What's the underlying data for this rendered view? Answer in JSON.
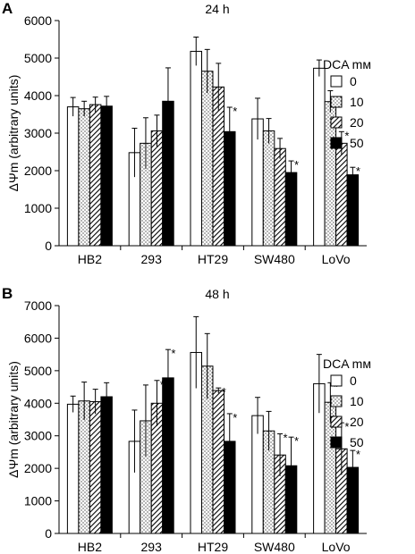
{
  "chart_data": [
    {
      "type": "bar",
      "panel_label": "A",
      "title": "24 h",
      "ylabel": "ΔΨm (arbitrary units)",
      "xlabel": "",
      "categories": [
        "HB2",
        "293",
        "HT29",
        "SW480",
        "LoVo"
      ],
      "ylim": [
        0,
        6000
      ],
      "yticks": [
        0,
        1000,
        2000,
        3000,
        4000,
        5000,
        6000
      ],
      "legend_title": "DCA mᴍ",
      "legend_position": "right",
      "series": [
        {
          "name": "0",
          "pattern": "open",
          "values": [
            3700,
            2480,
            5180,
            3380,
            4730
          ],
          "errors": [
            250,
            650,
            380,
            550,
            220
          ],
          "significant": [
            false,
            false,
            false,
            false,
            false
          ]
        },
        {
          "name": "10",
          "pattern": "dotted",
          "values": [
            3650,
            2730,
            4650,
            3060,
            3840
          ],
          "errors": [
            200,
            680,
            580,
            330,
            290
          ],
          "significant": [
            false,
            false,
            false,
            false,
            false
          ]
        },
        {
          "name": "20",
          "pattern": "hatched",
          "values": [
            3760,
            3060,
            4230,
            2590,
            2730
          ],
          "errors": [
            200,
            420,
            630,
            270,
            310
          ],
          "significant": [
            false,
            false,
            false,
            false,
            true
          ]
        },
        {
          "name": "50",
          "pattern": "solid",
          "values": [
            3720,
            3850,
            3040,
            1950,
            1890
          ],
          "errors": [
            260,
            890,
            650,
            310,
            200
          ],
          "significant": [
            false,
            false,
            true,
            true,
            true
          ]
        }
      ]
    },
    {
      "type": "bar",
      "panel_label": "B",
      "title": "48 h",
      "ylabel": "ΔΨm (arbitrary units)",
      "xlabel": "",
      "categories": [
        "HB2",
        "293",
        "HT29",
        "SW480",
        "LoVo"
      ],
      "ylim": [
        0,
        7000
      ],
      "yticks": [
        0,
        1000,
        2000,
        3000,
        4000,
        5000,
        6000,
        7000
      ],
      "legend_title": "DCA mᴍ",
      "legend_position": "right",
      "series": [
        {
          "name": "0",
          "pattern": "open",
          "values": [
            3970,
            2830,
            5560,
            3620,
            4600
          ],
          "errors": [
            250,
            960,
            1100,
            560,
            900
          ],
          "significant": [
            false,
            false,
            false,
            false,
            false
          ]
        },
        {
          "name": "10",
          "pattern": "dotted",
          "values": [
            4070,
            3460,
            5140,
            3150,
            4030
          ],
          "errors": [
            580,
            1100,
            1000,
            600,
            600
          ],
          "significant": [
            false,
            false,
            false,
            false,
            true
          ]
        },
        {
          "name": "20",
          "pattern": "hatched",
          "values": [
            4050,
            4000,
            4390,
            2410,
            2600
          ],
          "errors": [
            380,
            700,
            80,
            650,
            800
          ],
          "significant": [
            false,
            true,
            true,
            true,
            true
          ]
        },
        {
          "name": "50",
          "pattern": "solid",
          "values": [
            4200,
            4780,
            2830,
            2080,
            2030
          ],
          "errors": [
            430,
            870,
            850,
            880,
            520
          ],
          "significant": [
            false,
            true,
            true,
            true,
            true
          ]
        }
      ]
    }
  ]
}
